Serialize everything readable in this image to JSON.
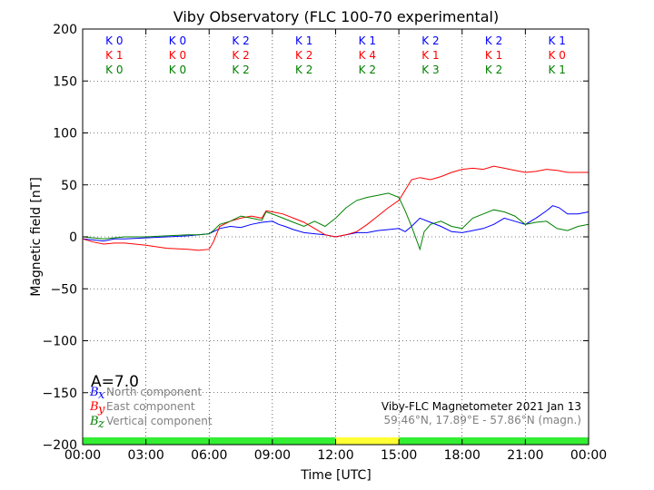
{
  "chart_data": {
    "type": "line",
    "title": "Viby Observatory (FLC 100-70 experimental)",
    "xlabel": "Time [UTC]",
    "ylabel": "Magnetic field [nT]",
    "xlim": [
      0,
      24
    ],
    "ylim": [
      -200,
      200
    ],
    "x_ticks": [
      0,
      3,
      6,
      9,
      12,
      15,
      18,
      21,
      24
    ],
    "x_tick_labels": [
      "00:00",
      "03:00",
      "06:00",
      "09:00",
      "12:00",
      "15:00",
      "18:00",
      "21:00",
      "00:00"
    ],
    "y_ticks": [
      -200,
      -150,
      -100,
      -50,
      0,
      50,
      100,
      150,
      200
    ],
    "y_tick_labels": [
      "−200",
      "−150",
      "−100",
      "−50",
      "0",
      "50",
      "100",
      "150",
      "200"
    ],
    "grid": true,
    "series": [
      {
        "name": "North component",
        "color": "#0000ff",
        "x": [
          0,
          0.5,
          1,
          1.5,
          2,
          3,
          4,
          5,
          5.5,
          6,
          6.2,
          6.5,
          7,
          7.5,
          8,
          8.5,
          9,
          9.3,
          9.6,
          10,
          10.5,
          11,
          11.5,
          12,
          12.5,
          13,
          13.5,
          14,
          14.5,
          15,
          15.3,
          15.6,
          16,
          16.5,
          17,
          17.5,
          18,
          18.5,
          19,
          19.5,
          20,
          20.5,
          21,
          21.5,
          22,
          22.3,
          22.6,
          23,
          23.5,
          24
        ],
        "values": [
          -2,
          -3,
          -4,
          -2,
          -2,
          -1,
          0,
          1,
          2,
          3,
          5,
          8,
          10,
          9,
          12,
          14,
          15,
          12,
          10,
          7,
          4,
          3,
          2,
          0,
          2,
          4,
          4,
          6,
          7,
          8,
          5,
          10,
          18,
          14,
          10,
          5,
          4,
          6,
          8,
          12,
          18,
          15,
          12,
          18,
          25,
          30,
          28,
          22,
          22,
          24
        ]
      },
      {
        "name": "East component",
        "color": "#ff0000",
        "x": [
          0,
          0.5,
          1,
          1.5,
          2,
          3,
          4,
          5,
          5.5,
          6,
          6.2,
          6.5,
          7,
          7.5,
          8,
          8.5,
          8.7,
          9,
          9.5,
          10,
          10.5,
          11,
          11.5,
          12,
          12.5,
          13,
          13.5,
          14,
          14.5,
          15,
          15.3,
          15.6,
          16,
          16.5,
          17,
          17.5,
          18,
          18.5,
          19,
          19.5,
          20,
          20.5,
          21,
          21.5,
          22,
          22.5,
          23,
          23.5,
          24
        ],
        "values": [
          -2,
          -5,
          -7,
          -6,
          -6,
          -8,
          -11,
          -12,
          -13,
          -12,
          -5,
          10,
          15,
          18,
          20,
          18,
          25,
          24,
          22,
          18,
          14,
          8,
          2,
          0,
          2,
          5,
          12,
          20,
          28,
          35,
          45,
          55,
          57,
          55,
          58,
          62,
          65,
          66,
          65,
          68,
          66,
          64,
          62,
          63,
          65,
          64,
          62,
          62,
          62
        ]
      },
      {
        "name": "Vertical component",
        "color": "#008000",
        "x": [
          0,
          0.5,
          1,
          1.5,
          2,
          3,
          4,
          5,
          5.5,
          6,
          6.2,
          6.5,
          7,
          7.5,
          8,
          8.5,
          8.7,
          9,
          9.5,
          10,
          10.5,
          11,
          11.5,
          12,
          12.5,
          13,
          13.5,
          14,
          14.5,
          15,
          15.3,
          15.6,
          16,
          16.2,
          16.5,
          17,
          17.5,
          18,
          18.5,
          19,
          19.5,
          20,
          20.5,
          21,
          21.5,
          22,
          22.5,
          23,
          23.5,
          24
        ],
        "values": [
          0,
          -1,
          -2,
          -1,
          0,
          0,
          1,
          2,
          2,
          3,
          6,
          12,
          15,
          20,
          18,
          16,
          24,
          22,
          18,
          14,
          10,
          15,
          10,
          18,
          28,
          35,
          38,
          40,
          42,
          38,
          25,
          10,
          -12,
          5,
          12,
          15,
          10,
          8,
          18,
          22,
          26,
          24,
          20,
          12,
          14,
          15,
          8,
          6,
          10,
          12
        ]
      }
    ],
    "k_rows": [
      {
        "color": "#0000ff",
        "labels": [
          "K 0",
          "K 0",
          "K 2",
          "K 1",
          "K 1",
          "K 2",
          "K 2",
          "K 1"
        ]
      },
      {
        "color": "#ff0000",
        "labels": [
          "K 1",
          "K 0",
          "K 2",
          "K 2",
          "K 4",
          "K 1",
          "K 1",
          "K 0"
        ]
      },
      {
        "color": "#008000",
        "labels": [
          "K 0",
          "K 0",
          "K 2",
          "K 2",
          "K 2",
          "K 3",
          "K 2",
          "K 1"
        ]
      }
    ],
    "activity_bar": [
      {
        "from": 0,
        "to": 12,
        "color": "#33ee33"
      },
      {
        "from": 12,
        "to": 15,
        "color": "#ffff33"
      },
      {
        "from": 15,
        "to": 24,
        "color": "#33ee33"
      }
    ],
    "a_index": "A=7.0",
    "legend": [
      {
        "symbol": "B",
        "subscript": "x",
        "text": "North component",
        "color": "#0000ff"
      },
      {
        "symbol": "B",
        "subscript": "y",
        "text": "East component",
        "color": "#ff0000"
      },
      {
        "symbol": "B",
        "subscript": "z",
        "text": "Vertical component",
        "color": "#008000"
      }
    ],
    "info_line1": "Viby-FLC Magnetometer 2021 Jan 13",
    "info_line2": "59.46°N, 17.89°E - 57.86°N (magn.)"
  }
}
